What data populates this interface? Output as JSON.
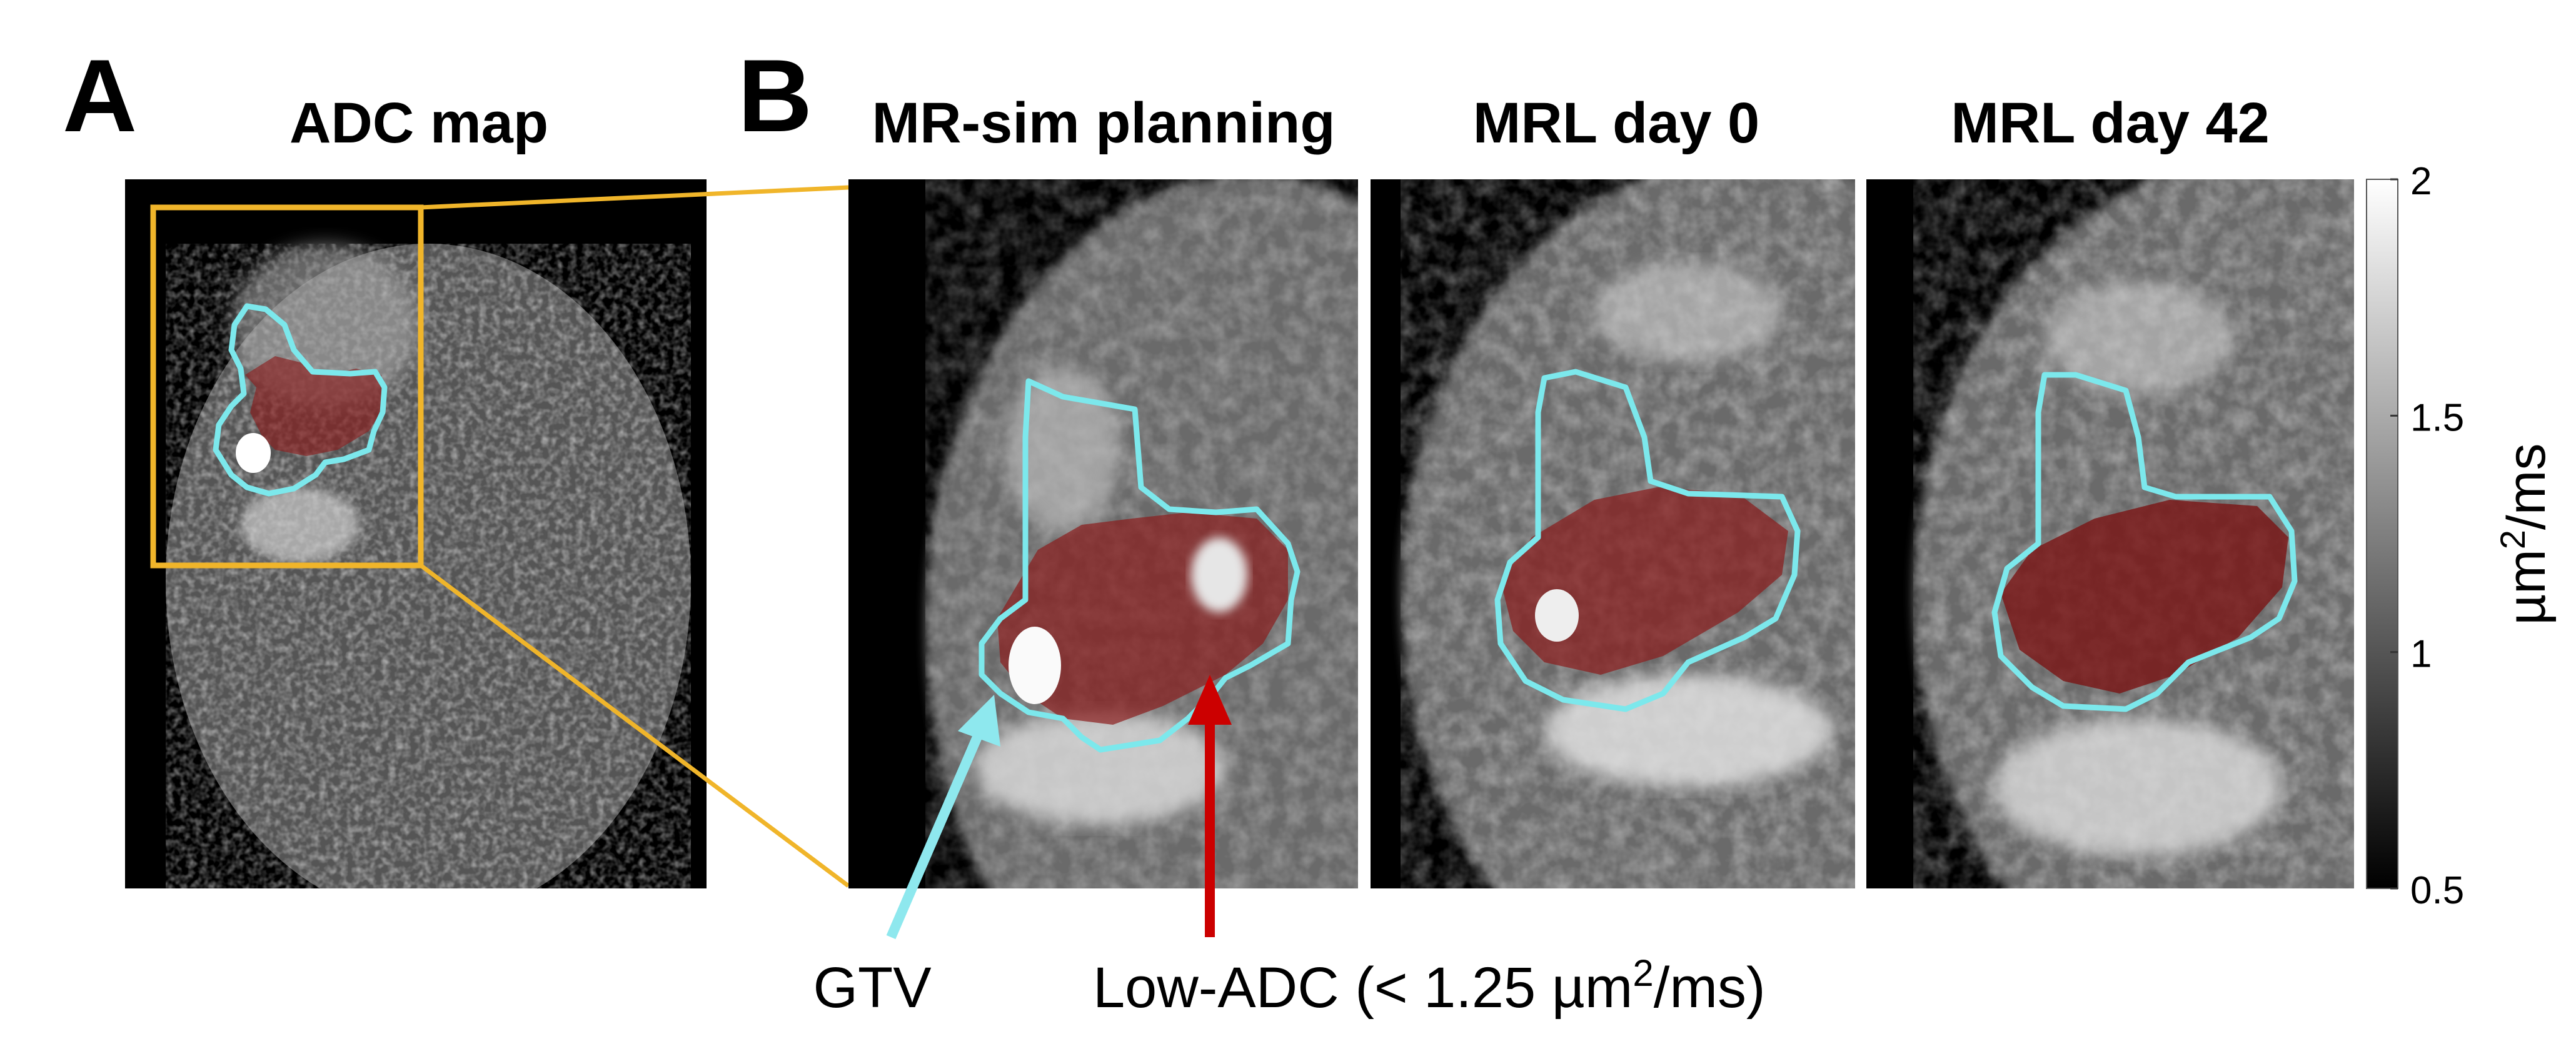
{
  "panel_a": {
    "letter": "A",
    "title": "ADC map"
  },
  "panel_b": {
    "letter": "B",
    "titles": [
      "MR-sim planning",
      "MRL day 0",
      "MRL day 42"
    ]
  },
  "colorbar": {
    "ticks": [
      "2",
      "1.5",
      "1",
      "0.5"
    ],
    "tick_values": [
      2,
      1.5,
      1,
      0.5
    ],
    "range": [
      0.5,
      2
    ],
    "unit_prefix": "µm",
    "unit_sup": "2",
    "unit_suffix": "/ms",
    "colormap": "gray"
  },
  "annotations": {
    "gtv_label": "GTV",
    "low_adc_prefix": "Low-ADC (< 1.25 µm",
    "low_adc_sup": "2",
    "low_adc_suffix": "/ms)"
  },
  "colors": {
    "zoom_box": "#f0b52a",
    "gtv_contour": "#7ce8ec",
    "gtv_arrow": "#8ee8ee",
    "low_adc_fill": "#8b1d1d",
    "low_adc_arrow": "#cc0000"
  }
}
